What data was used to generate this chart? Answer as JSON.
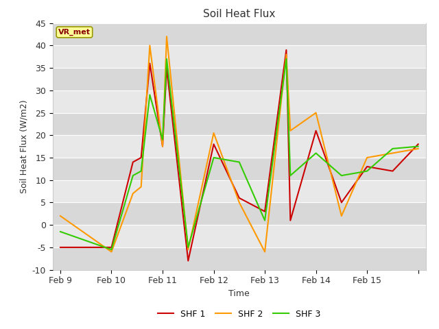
{
  "title": "Soil Heat Flux",
  "xlabel": "Time",
  "ylabel": "Soil Heat Flux (W/m2)",
  "ylim": [
    -10,
    45
  ],
  "fig_facecolor": "#ffffff",
  "plot_bg_color": "#e8e8e8",
  "legend_label": "VR_met",
  "series": {
    "SHF 1": {
      "color": "#cc0000",
      "x": [
        0,
        1.0,
        1.42,
        1.58,
        1.75,
        2.0,
        2.08,
        2.5,
        3.0,
        3.5,
        4.0,
        4.42,
        4.5,
        5.0,
        5.5,
        6.0,
        6.5,
        7.0
      ],
      "y": [
        -5,
        -5,
        14,
        15,
        36,
        17.5,
        35,
        -8,
        18,
        6,
        3,
        39,
        1,
        21,
        5,
        13,
        12,
        18
      ]
    },
    "SHF 2": {
      "color": "#ff9900",
      "x": [
        0,
        1.0,
        1.42,
        1.58,
        1.75,
        2.0,
        2.08,
        2.5,
        3.0,
        3.5,
        4.0,
        4.42,
        4.5,
        5.0,
        5.5,
        6.0,
        6.5,
        7.0
      ],
      "y": [
        2,
        -6,
        7,
        8.5,
        40,
        17.5,
        42,
        -5.5,
        20.5,
        5,
        -6,
        38,
        21,
        25,
        2,
        15,
        16,
        17
      ]
    },
    "SHF 3": {
      "color": "#33cc00",
      "x": [
        0,
        1.0,
        1.42,
        1.58,
        1.75,
        2.0,
        2.08,
        2.5,
        3.0,
        3.5,
        4.0,
        4.42,
        4.5,
        5.0,
        5.5,
        6.0,
        6.5,
        7.0
      ],
      "y": [
        -1.5,
        -5.5,
        11,
        12,
        29,
        19,
        37,
        -5,
        15,
        14,
        1,
        37,
        11,
        16,
        11,
        12,
        17,
        17.5
      ]
    }
  },
  "xtick_positions": [
    0,
    1,
    2,
    3,
    4,
    5,
    6,
    7
  ],
  "xtick_labels": [
    "Feb 9",
    "Feb 10",
    "Feb 11",
    "Feb 12",
    "Feb 13",
    "Feb 14",
    "Feb 15"
  ],
  "ytick_positions": [
    -10,
    -5,
    0,
    5,
    10,
    15,
    20,
    25,
    30,
    35,
    40,
    45
  ],
  "grid_color": "#ffffff",
  "legend_box_facecolor": "#ffff99",
  "legend_box_edgecolor": "#999900",
  "legend_text_color": "#880000",
  "band_colors": [
    "#d8d8d8",
    "#e8e8e8"
  ]
}
